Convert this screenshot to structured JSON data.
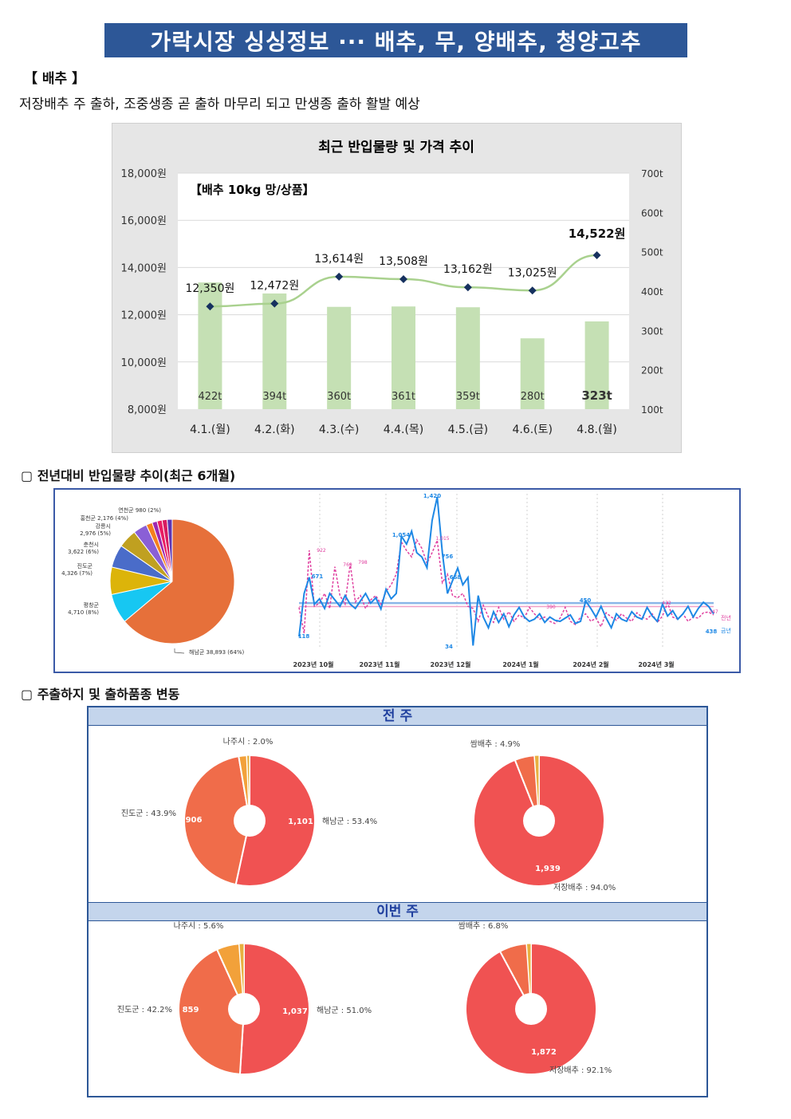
{
  "header": {
    "title": "가락시장 싱싱정보 ··· 배추, 무, 양배추, 청양고추"
  },
  "section": {
    "label": "【 배추 】",
    "lead": "저장배추 주 출하, 조중생종 곧 출하 마무리 되고 만생종 출하 활발 예상"
  },
  "colors": {
    "title_bg": "#2d5797",
    "bar": "#c5e0b4",
    "line": "#a9d18e",
    "marker": "#16315f",
    "pie_red": "#f05252",
    "pie_orange": "#f06c4a",
    "pie_gold": "#f2a13a",
    "haenam": "#e6703a",
    "current_year": "#1e88e5",
    "prev_year": "#e040a0"
  },
  "chart_data": [
    {
      "type": "bar",
      "title": "최근 반입물량 및 가격 추이",
      "subtitle": "【배추 10kg 망/상품】",
      "categories": [
        "4.1.(월)",
        "4.2.(화)",
        "4.3.(수)",
        "4.4.(목)",
        "4.5.(금)",
        "4.6.(토)",
        "4.8.(월)"
      ],
      "series": [
        {
          "name": "반입물량",
          "axis": "right",
          "values": [
            422,
            394,
            360,
            361,
            359,
            280,
            323
          ],
          "labels": [
            "422t",
            "394t",
            "360t",
            "361t",
            "359t",
            "280t",
            "323t"
          ]
        },
        {
          "name": "가격",
          "axis": "left",
          "type": "line",
          "values": [
            12350,
            12472,
            13614,
            13508,
            13162,
            13025,
            14522
          ],
          "labels": [
            "12,350원",
            "12,472원",
            "13,614원",
            "13,508원",
            "13,162원",
            "13,025원",
            "14,522원"
          ]
        }
      ],
      "ylim_left": [
        8000,
        18000
      ],
      "ylim_right": [
        100,
        700
      ],
      "left_ticks": [
        "8,000원",
        "10,000원",
        "12,000원",
        "14,000원",
        "16,000원",
        "18,000원"
      ],
      "right_ticks": [
        "100t",
        "200t",
        "300t",
        "400t",
        "500t",
        "600t",
        "700t"
      ]
    },
    {
      "type": "pie",
      "title": "전년대비 반입물량 추이(최근 6개월) - 산지별",
      "labels": [
        "해남군 38,893 (64%)",
        "평창군 4,710 (8%)",
        "진도군 4,326 (7%)",
        "춘천시 3,622 (6%)",
        "강릉시 2,976 (5%)",
        "홍천군 2,176 (4%)",
        "연천군 980 (2%)"
      ],
      "values": [
        38893,
        4710,
        4326,
        3622,
        2976,
        2176,
        980
      ],
      "others": 3200,
      "colors": [
        "#e6703a",
        "#17c7f2",
        "#dcb40a",
        "#4a6cc9",
        "#c0a020",
        "#8a5fd6",
        "#f5801e"
      ]
    },
    {
      "type": "line",
      "title": "전년대비 반입물량 추이(최근 6개월) - 일별",
      "x_labels": [
        "2023년 10월",
        "2023년 11월",
        "2023년 12월",
        "2024년 1월",
        "2024년 2월",
        "2024년 3월"
      ],
      "legend": [
        "전년",
        "금년"
      ],
      "current_labels": [
        "118",
        "671",
        "1,054",
        "1,420",
        "756",
        "668",
        "450",
        "438",
        "34"
      ],
      "prev_labels": [
        "922",
        "769",
        "798",
        "1,015",
        "390",
        "432",
        "347"
      ],
      "current_values": [
        118,
        520,
        671,
        420,
        470,
        380,
        520,
        460,
        400,
        500,
        420,
        380,
        450,
        520,
        430,
        480,
        375,
        560,
        470,
        520,
        1054,
        980,
        1100,
        900,
        860,
        760,
        1200,
        1420,
        900,
        520,
        640,
        756,
        600,
        668,
        34,
        500,
        300,
        200,
        350,
        250,
        330,
        210,
        320,
        390,
        300,
        260,
        280,
        330,
        250,
        300,
        270,
        260,
        290,
        320,
        240,
        260,
        450,
        380,
        300,
        400,
        290,
        200,
        330,
        280,
        260,
        350,
        300,
        280,
        390,
        310,
        260,
        420,
        310,
        360,
        280,
        330,
        400,
        300,
        380,
        438,
        400,
        330
      ],
      "prev_values": [
        390,
        150,
        922,
        400,
        430,
        520,
        380,
        769,
        500,
        420,
        798,
        440,
        500,
        380,
        460,
        500,
        420,
        540,
        600,
        700,
        1000,
        920,
        860,
        1020,
        940,
        800,
        900,
        1015,
        620,
        700,
        500,
        480,
        520,
        400,
        380,
        260,
        410,
        300,
        250,
        390,
        280,
        350,
        260,
        320,
        290,
        390,
        330,
        280,
        300,
        260,
        240,
        290,
        390,
        260,
        230,
        300,
        330,
        260,
        290,
        210,
        340,
        300,
        270,
        330,
        290,
        260,
        340,
        300,
        280,
        330,
        250,
        310,
        432,
        300,
        280,
        330,
        260,
        300,
        290,
        340,
        347,
        320
      ],
      "current_avg": 430,
      "prev_avg": 420
    },
    {
      "type": "pie",
      "title": "전 주 - 주출하지",
      "labels": [
        "해남군 : 53.4%",
        "진도군 : 43.9%",
        "나주시 : 2.0%"
      ],
      "values": [
        1101,
        906,
        41
      ],
      "value_labels": [
        "1,101",
        "906",
        ""
      ],
      "others": 14
    },
    {
      "type": "pie",
      "title": "전 주 - 출하품종",
      "labels": [
        "저장배추 : 94.0%",
        "쌈배추 : 4.9%"
      ],
      "values": [
        1939,
        101
      ],
      "value_labels": [
        "1,939",
        ""
      ],
      "others": 23
    },
    {
      "type": "pie",
      "title": "이번 주 - 주출하지",
      "labels": [
        "해남군 : 51.0%",
        "진도군 : 42.2%",
        "나주시 : 5.6%"
      ],
      "values": [
        1037,
        859,
        114
      ],
      "value_labels": [
        "1,037",
        "859",
        ""
      ],
      "others": 24
    },
    {
      "type": "pie",
      "title": "이번 주 - 출하품종",
      "labels": [
        "저장배추 : 92.1%",
        "쌈배추 : 6.8%"
      ],
      "values": [
        1872,
        138
      ],
      "value_labels": [
        "1,872",
        ""
      ],
      "others": 22
    }
  ],
  "sub_sections": {
    "origin_title": "▢  전년대비 반입물량 추이(최근 6개월)",
    "variety_title": "▢  주출하지 및 출하품종 변동"
  },
  "bands": {
    "last_week": "전 주",
    "this_week": "이번 주"
  }
}
